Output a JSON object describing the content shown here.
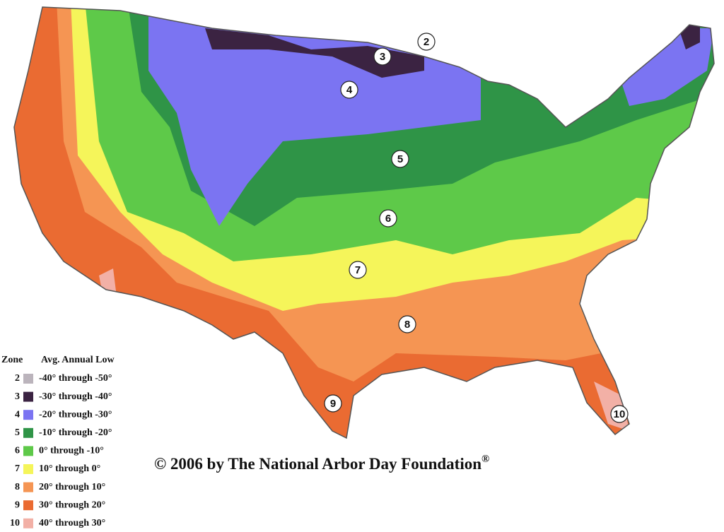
{
  "map": {
    "title": "© 2006 by The National Arbor Day Foundation",
    "title_mark": "®",
    "legend": {
      "header": [
        "Zone",
        "Avg. Annual Low"
      ],
      "rows": [
        {
          "zone": "2",
          "range": "-40° through -50°",
          "color": "#bbb4bc"
        },
        {
          "zone": "3",
          "range": "-30° through -40°",
          "color": "#3b2342"
        },
        {
          "zone": "4",
          "range": "-20° through -30°",
          "color": "#7b74f2"
        },
        {
          "zone": "5",
          "range": "-10° through -20°",
          "color": "#2f9447"
        },
        {
          "zone": "6",
          "range": "0° through -10°",
          "color": "#5ec949"
        },
        {
          "zone": "7",
          "range": "10° through 0°",
          "color": "#f5f55a"
        },
        {
          "zone": "8",
          "range": "20° through 10°",
          "color": "#f59553"
        },
        {
          "zone": "9",
          "range": "30° through 20°",
          "color": "#ea6b32"
        },
        {
          "zone": "10",
          "range": "40° through 30°",
          "color": "#f2b0a6"
        }
      ]
    },
    "zone_labels": [
      "2",
      "3",
      "4",
      "5",
      "6",
      "7",
      "8",
      "9",
      "10"
    ]
  }
}
